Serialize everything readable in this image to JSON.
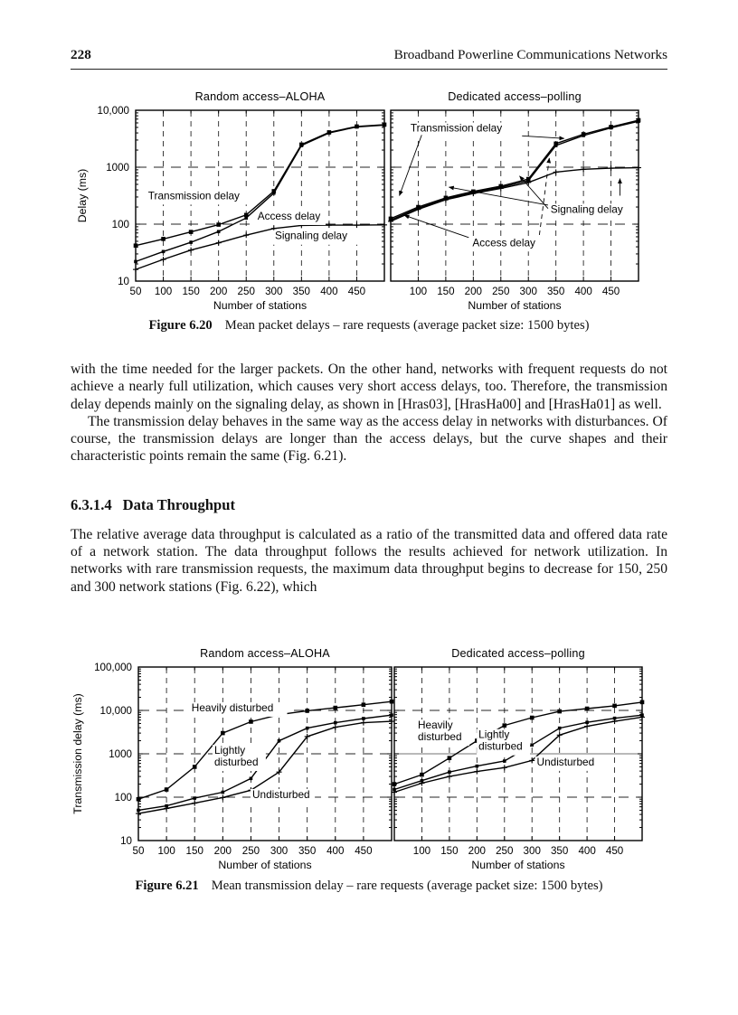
{
  "header": {
    "page_number": "228",
    "title": "Broadband Powerline Communications Networks"
  },
  "figures": {
    "fig620": {
      "caption_label": "Figure 6.20",
      "caption_text": "Mean packet delays – rare requests (average packet size: 1500 bytes)"
    },
    "fig621": {
      "caption_label": "Figure 6.21",
      "caption_text": "Mean transmission delay – rare requests (average packet size: 1500 bytes)"
    }
  },
  "section": {
    "number": "6.3.1.4",
    "title": "Data Throughput"
  },
  "paragraphs": {
    "p1": "with the time needed for the larger packets. On the other hand, networks with frequent requests do not achieve a nearly full utilization, which causes very short access delays, too. Therefore, the transmission delay depends mainly on the signaling delay, as shown in [Hras03], [HrasHa00] and [HrasHa01] as well.",
    "p2": "The transmission delay behaves in the same way as the access delay in networks with disturbances. Of course, the transmission delays are longer than the access delays, but the curve shapes and their characteristic points remain the same (Fig. 6.21).",
    "p3": "The relative average data throughput is calculated as a ratio of the transmitted data and offered data rate of a network station. The data throughput follows the results achieved for network utilization. In networks with rare transmission requests, the maximum data throughput begins to decrease for 150, 250 and 300 network stations (Fig. 6.22), which"
  },
  "chart_data": [
    {
      "id": "fig-6-20-left",
      "type": "line",
      "title": "Random access–ALOHA",
      "xlabel": "Number of stations",
      "ylabel": "Delay (ms)",
      "xlim": [
        50,
        500
      ],
      "xticks": [
        50,
        100,
        150,
        200,
        250,
        300,
        350,
        400,
        450
      ],
      "xtick_labels": [
        "50",
        "100",
        "150",
        "200",
        "250",
        "300",
        "350",
        "400",
        "450"
      ],
      "ylog": true,
      "ylim": [
        10,
        10000
      ],
      "yticks": [
        {
          "v": 10,
          "label": "10"
        },
        {
          "v": 100,
          "label": "100"
        },
        {
          "v": 1000,
          "label": "1000"
        },
        {
          "v": 10000,
          "label": "10,000"
        }
      ],
      "show_ytick_labels": true,
      "ygrid_dashed": [
        100,
        1000
      ],
      "series": [
        {
          "name": "Transmission delay",
          "marker": "square",
          "points": [
            [
              50,
              42
            ],
            [
              100,
              55
            ],
            [
              150,
              73
            ],
            [
              200,
              98
            ],
            [
              250,
              145
            ],
            [
              300,
              380
            ],
            [
              350,
              2500
            ],
            [
              400,
              4100
            ],
            [
              450,
              5200
            ],
            [
              500,
              5600
            ]
          ]
        },
        {
          "name": "Access delay",
          "marker": "square_small",
          "points": [
            [
              50,
              22
            ],
            [
              100,
              33
            ],
            [
              150,
              48
            ],
            [
              200,
              74
            ],
            [
              250,
              128
            ],
            [
              300,
              350
            ],
            [
              350,
              2400
            ],
            [
              400,
              4000
            ],
            [
              450,
              5100
            ],
            [
              500,
              5500
            ]
          ]
        },
        {
          "name": "Signaling delay",
          "marker": "plus",
          "points": [
            [
              50,
              16
            ],
            [
              100,
              24
            ],
            [
              150,
              35
            ],
            [
              200,
              47
            ],
            [
              250,
              64
            ],
            [
              300,
              84
            ],
            [
              350,
              95
            ],
            [
              400,
              96
            ],
            [
              450,
              96
            ],
            [
              500,
              97
            ]
          ]
        }
      ],
      "annotations": [
        {
          "lines": [
            "Transmission delay"
          ],
          "xf": 0.05,
          "yf": 0.52
        },
        {
          "lines": [
            "Access delay"
          ],
          "xf": 0.49,
          "yf": 0.64
        },
        {
          "lines": [
            "Signaling delay"
          ],
          "xf": 0.56,
          "yf": 0.755
        }
      ]
    },
    {
      "id": "fig-6-20-right",
      "type": "line",
      "title": "Dedicated access–polling",
      "xlabel": "Number of stations",
      "ylabel": "Delay (ms)",
      "xlim": [
        50,
        500
      ],
      "xticks": [
        50,
        100,
        150,
        200,
        250,
        300,
        350,
        400,
        450
      ],
      "xtick_labels": [
        "",
        "100",
        "150",
        "200",
        "250",
        "300",
        "350",
        "400",
        "450"
      ],
      "ylog": true,
      "ylim": [
        10,
        10000
      ],
      "yticks": [
        {
          "v": 10,
          "label": "10"
        },
        {
          "v": 100,
          "label": "100"
        },
        {
          "v": 1000,
          "label": "1000"
        },
        {
          "v": 10000,
          "label": "10,000"
        }
      ],
      "show_ytick_labels": false,
      "ygrid_dashed": [
        100,
        1000
      ],
      "series": [
        {
          "name": "Transmission delay",
          "marker": "square",
          "points": [
            [
              50,
              125
            ],
            [
              100,
              200
            ],
            [
              150,
              290
            ],
            [
              200,
              375
            ],
            [
              250,
              465
            ],
            [
              300,
              620
            ],
            [
              350,
              2600
            ],
            [
              400,
              3800
            ],
            [
              450,
              5100
            ],
            [
              500,
              6700
            ]
          ]
        },
        {
          "name": "Access delay",
          "marker": "square_small",
          "points": [
            [
              50,
              118
            ],
            [
              100,
              190
            ],
            [
              150,
              278
            ],
            [
              200,
              360
            ],
            [
              250,
              445
            ],
            [
              300,
              580
            ],
            [
              350,
              2400
            ],
            [
              400,
              3600
            ],
            [
              450,
              4900
            ],
            [
              500,
              6400
            ]
          ]
        },
        {
          "name": "Signaling delay",
          "marker": "plus",
          "points": [
            [
              50,
              112
            ],
            [
              100,
              182
            ],
            [
              150,
              268
            ],
            [
              200,
              345
            ],
            [
              250,
              425
            ],
            [
              300,
              540
            ],
            [
              350,
              820
            ],
            [
              400,
              920
            ],
            [
              450,
              960
            ],
            [
              500,
              980
            ]
          ]
        }
      ],
      "annotations": [
        {
          "lines": [
            "Transmission delay"
          ],
          "xf": 0.08,
          "yf": 0.125,
          "leaders": [
            {
              "x1": 0.125,
              "y1": 0.145,
              "x2": 0.035,
              "y2": 0.5,
              "arrow": true
            },
            {
              "x1": 0.53,
              "y1": 0.15,
              "x2": 0.7,
              "y2": 0.165,
              "arrow": true
            }
          ]
        },
        {
          "lines": [
            "Signaling delay"
          ],
          "xf": 0.645,
          "yf": 0.6,
          "leaders": [
            {
              "x1": 0.635,
              "y1": 0.555,
              "x2": 0.235,
              "y2": 0.45,
              "arrow": true
            },
            {
              "x1": 0.635,
              "y1": 0.575,
              "x2": 0.52,
              "y2": 0.385,
              "arrow": true
            },
            {
              "x1": 0.925,
              "y1": 0.5,
              "x2": 0.925,
              "y2": 0.4,
              "arrow": true
            }
          ]
        },
        {
          "lines": [
            "Access delay"
          ],
          "xf": 0.33,
          "yf": 0.795,
          "leaders": [
            {
              "x1": 0.315,
              "y1": 0.745,
              "x2": 0.055,
              "y2": 0.615,
              "arrow": true
            },
            {
              "x1": 0.6,
              "y1": 0.73,
              "x2": 0.64,
              "y2": 0.28,
              "arrow": true,
              "dashed": true
            }
          ]
        }
      ]
    },
    {
      "id": "fig-6-21-left",
      "type": "line",
      "title": "Random access–ALOHA",
      "xlabel": "Number of stations",
      "ylabel": "Transmission delay (ms)",
      "xlim": [
        50,
        500
      ],
      "xticks": [
        50,
        100,
        150,
        200,
        250,
        300,
        350,
        400,
        450
      ],
      "xtick_labels": [
        "50",
        "100",
        "150",
        "200",
        "250",
        "300",
        "350",
        "400",
        "450"
      ],
      "ylog": true,
      "ylim": [
        10,
        100000
      ],
      "yticks": [
        {
          "v": 10,
          "label": "10"
        },
        {
          "v": 100,
          "label": "100"
        },
        {
          "v": 1000,
          "label": "1000"
        },
        {
          "v": 10000,
          "label": "10,000"
        },
        {
          "v": 100000,
          "label": "100,000"
        }
      ],
      "show_ytick_labels": true,
      "ygrid_dashed": [
        100,
        1000,
        10000
      ],
      "series": [
        {
          "name": "Heavily disturbed",
          "marker": "square",
          "points": [
            [
              50,
              90
            ],
            [
              100,
              150
            ],
            [
              150,
              500
            ],
            [
              200,
              3000
            ],
            [
              250,
              5500
            ],
            [
              300,
              8000
            ],
            [
              350,
              9800
            ],
            [
              400,
              11500
            ],
            [
              450,
              13500
            ],
            [
              500,
              16000
            ]
          ]
        },
        {
          "name": "Lightly disturbed",
          "marker": "square_small",
          "points": [
            [
              50,
              50
            ],
            [
              100,
              63
            ],
            [
              150,
              95
            ],
            [
              200,
              130
            ],
            [
              250,
              270
            ],
            [
              300,
              2000
            ],
            [
              350,
              3900
            ],
            [
              400,
              5200
            ],
            [
              450,
              6500
            ],
            [
              500,
              7800
            ]
          ]
        },
        {
          "name": "Undisturbed",
          "marker": "plus",
          "points": [
            [
              50,
              42
            ],
            [
              100,
              55
            ],
            [
              150,
              73
            ],
            [
              200,
              98
            ],
            [
              250,
              145
            ],
            [
              300,
              380
            ],
            [
              350,
              2500
            ],
            [
              400,
              4100
            ],
            [
              450,
              5200
            ],
            [
              500,
              5600
            ]
          ]
        }
      ],
      "annotations": [
        {
          "lines": [
            "Heavily disturbed"
          ],
          "xf": 0.21,
          "yf": 0.255
        },
        {
          "lines": [
            "Lightly",
            "disturbed"
          ],
          "xf": 0.3,
          "yf": 0.5
        },
        {
          "lines": [
            "Undisturbed"
          ],
          "xf": 0.45,
          "yf": 0.755
        }
      ]
    },
    {
      "id": "fig-6-21-right",
      "type": "line",
      "title": "Dedicated access–polling",
      "xlabel": "Number of stations",
      "ylabel": "Transmission delay (ms)",
      "xlim": [
        50,
        500
      ],
      "xticks": [
        50,
        100,
        150,
        200,
        250,
        300,
        350,
        400,
        450
      ],
      "xtick_labels": [
        "",
        "100",
        "150",
        "200",
        "250",
        "300",
        "350",
        "400",
        "450"
      ],
      "ylog": true,
      "ylim": [
        10,
        100000
      ],
      "yticks": [
        {
          "v": 10,
          "label": "10"
        },
        {
          "v": 100,
          "label": "100"
        },
        {
          "v": 1000,
          "label": "1000"
        },
        {
          "v": 10000,
          "label": "10,000"
        },
        {
          "v": 100000,
          "label": "100,000"
        }
      ],
      "show_ytick_labels": false,
      "ygrid_dashed": [
        100,
        10000
      ],
      "ygrid_solid": [
        1000
      ],
      "series": [
        {
          "name": "Heavily disturbed",
          "marker": "square",
          "points": [
            [
              50,
              200
            ],
            [
              100,
              330
            ],
            [
              150,
              800
            ],
            [
              200,
              2000
            ],
            [
              250,
              4500
            ],
            [
              300,
              6800
            ],
            [
              350,
              9500
            ],
            [
              400,
              11000
            ],
            [
              450,
              12800
            ],
            [
              500,
              15500
            ]
          ]
        },
        {
          "name": "Lightly disturbed",
          "marker": "square_small",
          "points": [
            [
              50,
              150
            ],
            [
              100,
              240
            ],
            [
              150,
              380
            ],
            [
              200,
              520
            ],
            [
              250,
              680
            ],
            [
              300,
              1600
            ],
            [
              350,
              3900
            ],
            [
              400,
              5300
            ],
            [
              450,
              6600
            ],
            [
              500,
              7800
            ]
          ]
        },
        {
          "name": "Undisturbed",
          "marker": "plus",
          "points": [
            [
              50,
              130
            ],
            [
              100,
              210
            ],
            [
              150,
              300
            ],
            [
              200,
              390
            ],
            [
              250,
              480
            ],
            [
              300,
              700
            ],
            [
              350,
              2700
            ],
            [
              400,
              4300
            ],
            [
              450,
              5600
            ],
            [
              500,
              7000
            ]
          ]
        }
      ],
      "annotations": [
        {
          "lines": [
            "Heavily",
            "disturbed"
          ],
          "xf": 0.095,
          "yf": 0.355
        },
        {
          "lines": [
            "Lightly",
            "disturbed"
          ],
          "xf": 0.34,
          "yf": 0.41
        },
        {
          "lines": [
            "Undisturbed"
          ],
          "xf": 0.575,
          "yf": 0.567
        }
      ]
    }
  ]
}
